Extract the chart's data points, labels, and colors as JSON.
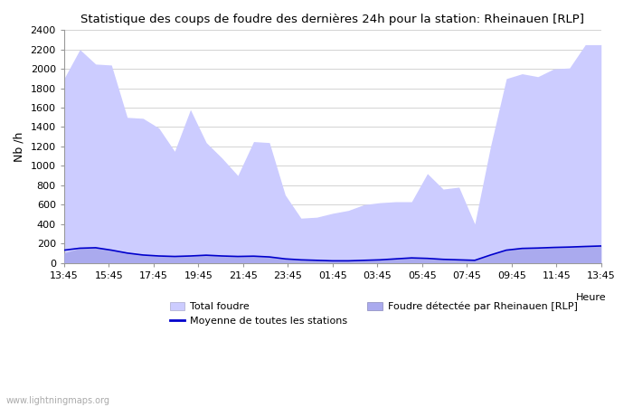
{
  "title": "Statistique des coups de foudre des dernières 24h pour la station: Rheinauen [RLP]",
  "ylabel": "Nb /h",
  "xlabel": "Heure",
  "watermark": "www.lightningmaps.org",
  "ylim": [
    0,
    2400
  ],
  "yticks": [
    0,
    200,
    400,
    600,
    800,
    1000,
    1200,
    1400,
    1600,
    1800,
    2000,
    2200,
    2400
  ],
  "xtick_labels": [
    "13:45",
    "15:45",
    "17:45",
    "19:45",
    "21:45",
    "23:45",
    "01:45",
    "03:45",
    "05:45",
    "07:45",
    "09:45",
    "11:45",
    "13:45"
  ],
  "bg_color": "#ffffff",
  "fill_color_total": "#ccccff",
  "fill_color_station": "#aaaaee",
  "line_color": "#0000cc",
  "legend_total": "Total foudre",
  "legend_station": "Foudre détectée par Rheinauen [RLP]",
  "legend_moyenne": "Moyenne de toutes les stations",
  "total_foudre": [
    1900,
    2200,
    2050,
    2040,
    1500,
    1490,
    1390,
    1150,
    1580,
    1240,
    1080,
    900,
    1250,
    1240,
    700,
    460,
    470,
    510,
    540,
    600,
    620,
    630,
    630,
    920,
    760,
    780,
    400,
    1200,
    1900,
    1950,
    1920,
    2000,
    2010,
    2250,
    2250
  ],
  "station_foudre": [
    100,
    150,
    160,
    130,
    110,
    80,
    70,
    65,
    70,
    80,
    70,
    65,
    68,
    60,
    40,
    30,
    25,
    20,
    20,
    25,
    30,
    40,
    50,
    45,
    35,
    30,
    25,
    80,
    130,
    150,
    155,
    160,
    165,
    170,
    175
  ],
  "moyenne": [
    130,
    150,
    155,
    130,
    100,
    80,
    70,
    65,
    70,
    78,
    70,
    65,
    68,
    60,
    40,
    30,
    25,
    20,
    20,
    25,
    30,
    40,
    50,
    45,
    35,
    30,
    25,
    80,
    130,
    148,
    152,
    158,
    162,
    168,
    173
  ]
}
